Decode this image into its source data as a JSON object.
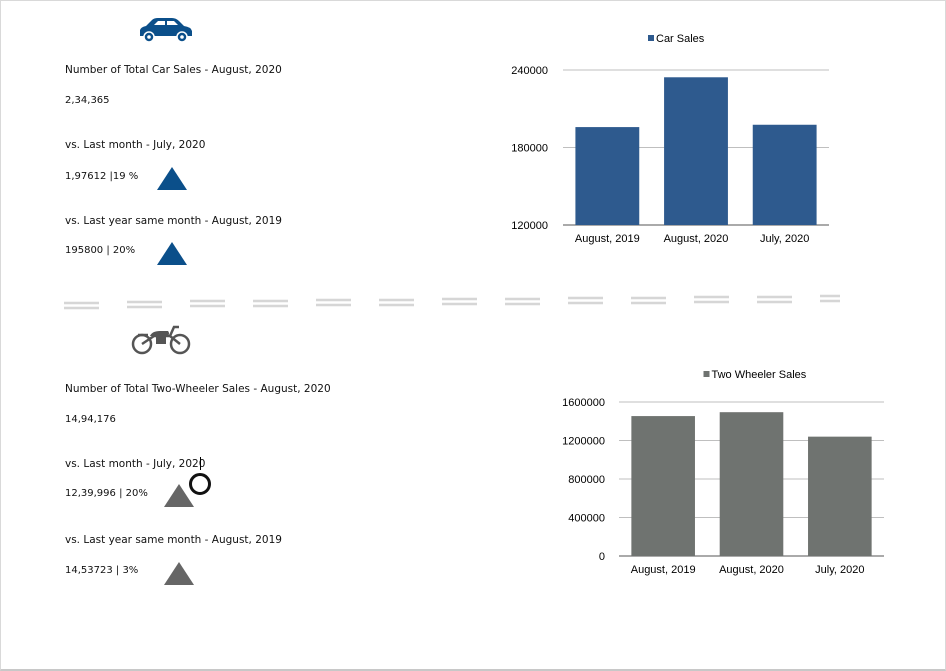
{
  "car_section": {
    "icon": "car-icon",
    "title": "Number of Total Car Sales - August, 2020",
    "total": "2,34,365",
    "vs_last_month_label": "vs. Last month - July, 2020",
    "vs_last_month_value": "1,97612 |19 %",
    "vs_last_year_label": "vs. Last year same month - August, 2019",
    "vs_last_year_value": "195800 | 20%",
    "trend_color": "#0b4f8a"
  },
  "two_wheeler_section": {
    "icon": "motorcycle-icon",
    "title": "Number of Total Two-Wheeler Sales - August, 2020",
    "total": "14,94,176",
    "vs_last_month_label": "vs. Last month - July, 2020",
    "vs_last_month_value": "12,39,996 | 20%",
    "vs_last_year_label": "vs. Last year same month - August, 2019",
    "vs_last_year_value": "14,53723 | 3%",
    "trend_color": "#666666"
  },
  "chart_data": [
    {
      "type": "bar",
      "categories": [
        "August, 2019",
        "August, 2020",
        "July, 2020"
      ],
      "series": [
        {
          "name": "Car Sales",
          "values": [
            195800,
            234365,
            197612
          ],
          "color": "#2e5a8e"
        }
      ],
      "ylim": [
        120000,
        240000
      ],
      "yticks": [
        120000,
        180000,
        240000
      ],
      "legend": "top",
      "grid": true
    },
    {
      "type": "bar",
      "categories": [
        "August, 2019",
        "August, 2020",
        "July, 2020"
      ],
      "series": [
        {
          "name": "Two Wheeler Sales",
          "values": [
            1453723,
            1494176,
            1239996
          ],
          "color": "#6f7370"
        }
      ],
      "ylim": [
        0,
        1600000
      ],
      "yticks": [
        0,
        400000,
        800000,
        1200000,
        1600000
      ],
      "legend": "top",
      "grid": true
    }
  ]
}
